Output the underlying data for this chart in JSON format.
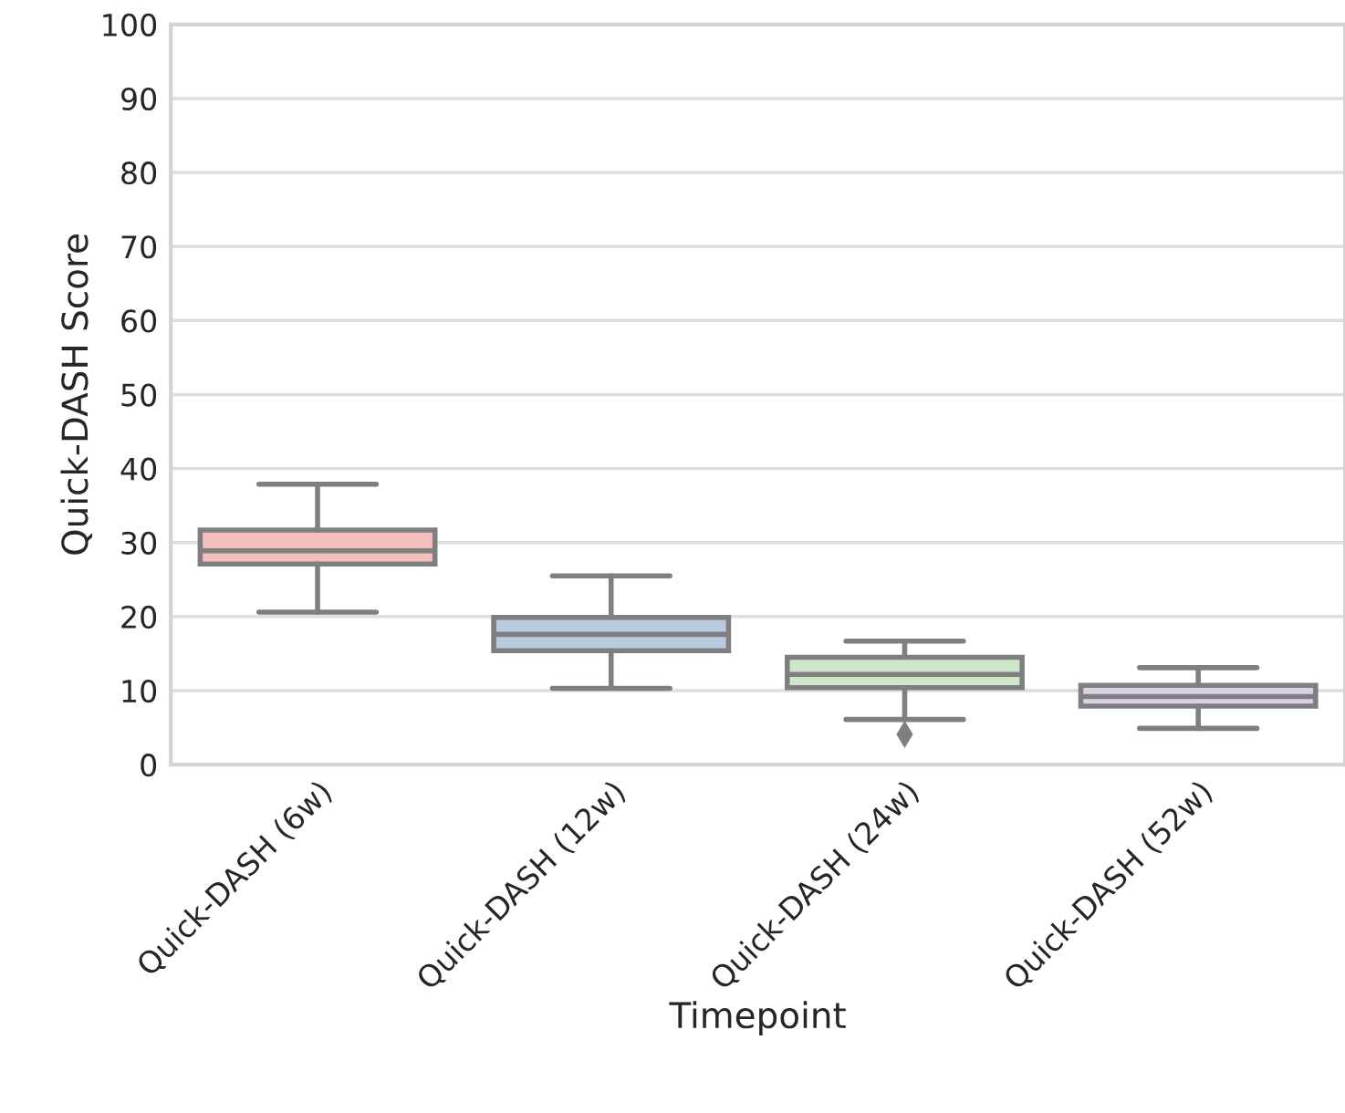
{
  "chart_data": {
    "type": "box",
    "xlabel": "Timepoint",
    "ylabel": "Quick-DASH Score",
    "categories": [
      "Quick-DASH (6w)",
      "Quick-DASH (12w)",
      "Quick-DASH (24w)",
      "Quick-DASH (52w)"
    ],
    "boxes": [
      {
        "low": 20.6,
        "q1": 27.1,
        "median": 28.9,
        "q3": 31.7,
        "high": 37.9
      },
      {
        "low": 10.3,
        "q1": 15.4,
        "median": 17.6,
        "q3": 19.9,
        "high": 25.5
      },
      {
        "low": 6.1,
        "q1": 10.4,
        "median": 12.2,
        "q3": 14.5,
        "high": 16.7,
        "outliers": [
          4.1
        ]
      },
      {
        "low": 4.9,
        "q1": 7.9,
        "median": 9.2,
        "q3": 10.7,
        "high": 13.1
      }
    ],
    "colors": [
      "#f2bfbd",
      "#b8cbdf",
      "#d0e6cb",
      "#ddd0e5"
    ],
    "ylim": [
      0,
      100
    ],
    "yticks": [
      0,
      10,
      20,
      30,
      40,
      50,
      60,
      70,
      80,
      90,
      100
    ],
    "grid": "y",
    "marker": "diamond"
  }
}
